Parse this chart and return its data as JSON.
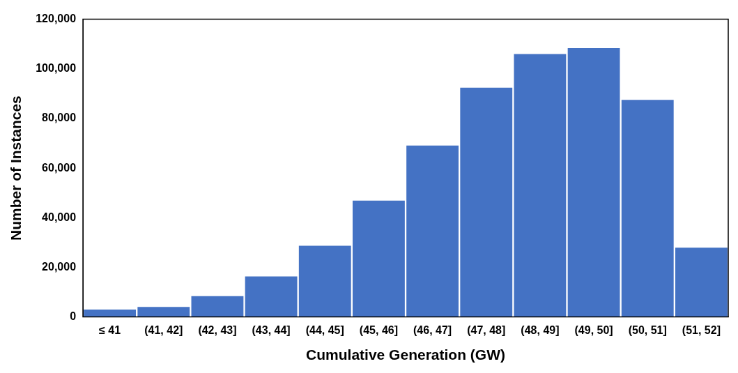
{
  "chart_data": {
    "type": "bar",
    "xlabel": "Cumulative Generation (GW)",
    "ylabel": "Number of Instances",
    "categories": [
      "≤ 41",
      "(41, 42]",
      "(42, 43]",
      "(43, 44]",
      "(44, 45]",
      "(45, 46]",
      "(46, 47]",
      "(47, 48]",
      "(48, 49]",
      "(49, 50]",
      "(50, 51]",
      "(51, 52]"
    ],
    "values": [
      3000,
      4000,
      8400,
      16300,
      28700,
      46900,
      69100,
      92400,
      106000,
      108400,
      87500,
      27900
    ],
    "color": "#4472c4",
    "ylim": [
      0,
      120000
    ],
    "yticks": [
      {
        "value": 0,
        "label": "0"
      },
      {
        "value": 20000,
        "label": "20,000"
      },
      {
        "value": 40000,
        "label": "40,000"
      },
      {
        "value": 60000,
        "label": "60,000"
      },
      {
        "value": 80000,
        "label": "80,000"
      },
      {
        "value": 100000,
        "label": "100,000"
      },
      {
        "value": 120000,
        "label": "120,000"
      }
    ],
    "grid": false,
    "legend": false
  }
}
